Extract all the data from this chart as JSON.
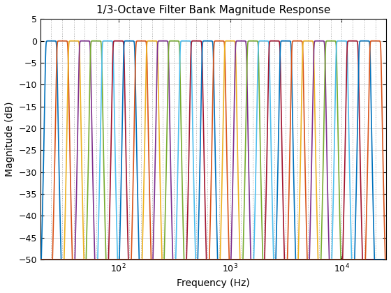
{
  "title": "1/3-Octave Filter Bank Magnitude Response",
  "xlabel": "Frequency (Hz)",
  "ylabel": "Magnitude (dB)",
  "xlim": [
    20,
    25000
  ],
  "ylim": [
    -50,
    5
  ],
  "num_filters": 30,
  "standard_centers": [
    25.0,
    31.5,
    40.0,
    50.0,
    63.0,
    80.0,
    100.0,
    125.0,
    160.0,
    200.0,
    250.0,
    315.0,
    400.0,
    500.0,
    630.0,
    800.0,
    1000.0,
    1250.0,
    1600.0,
    2000.0,
    2500.0,
    3150.0,
    4000.0,
    5000.0,
    6300.0,
    8000.0,
    10000.0,
    12500.0,
    16000.0,
    20000.0
  ],
  "line_colors": [
    "#0072BD",
    "#D95319",
    "#EDB120",
    "#7E2F8E",
    "#77AC30",
    "#4DBEEE",
    "#A2142F",
    "#0072BD",
    "#D95319",
    "#EDB120",
    "#7E2F8E",
    "#77AC30",
    "#4DBEEE",
    "#A2142F",
    "#0072BD",
    "#D95319",
    "#EDB120",
    "#7E2F8E",
    "#77AC30",
    "#4DBEEE",
    "#A2142F",
    "#0072BD",
    "#D95319",
    "#EDB120",
    "#7E2F8E",
    "#77AC30",
    "#4DBEEE",
    "#A2142F",
    "#0072BD",
    "#D95319"
  ],
  "filter_order": 10,
  "vgrid_color": "#B0B0B0",
  "hgrid_color": "#D0D0D0",
  "bg_color": "#FFFFFF"
}
